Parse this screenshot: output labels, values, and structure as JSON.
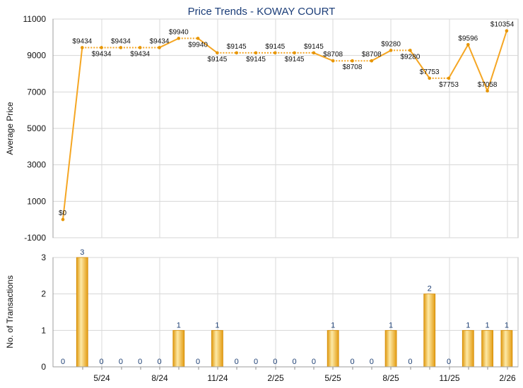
{
  "chart_data": [
    {
      "type": "line",
      "title": "Price Trends - KOWAY COURT",
      "ylabel": "Average Price",
      "ylim": [
        -1000,
        11000
      ],
      "yticks": [
        -1000,
        1000,
        3000,
        5000,
        7000,
        9000,
        11000
      ],
      "x_tick_labels": [
        "5/24",
        "8/24",
        "11/24",
        "2/25",
        "5/25",
        "8/25",
        "11/25",
        "2/26"
      ],
      "series": [
        {
          "values": [
            0,
            9434,
            9434,
            9434,
            9434,
            9434,
            9940,
            9940,
            9145,
            9145,
            9145,
            9145,
            9145,
            9145,
            8708,
            8708,
            8708,
            9280,
            9280,
            7753,
            7753,
            9596,
            7058,
            10354
          ],
          "labels": [
            "$0",
            "$9434",
            "$9434",
            "$9434",
            "$9434",
            "$9434",
            "$9940",
            "$9940",
            "$9145",
            "$9145",
            "$9145",
            "$9145",
            "$9145",
            "$9145",
            "$8708",
            "$8708",
            "$8708",
            "$9280",
            "$9280",
            "$7753",
            "$7753",
            "$9596",
            "$7058",
            "$10354"
          ],
          "has_transaction": [
            false,
            true,
            false,
            false,
            false,
            false,
            true,
            false,
            true,
            false,
            false,
            false,
            false,
            false,
            true,
            false,
            false,
            true,
            false,
            true,
            false,
            true,
            true,
            true
          ]
        }
      ],
      "colors": {
        "line": "#f5a623",
        "marker": "#e69500"
      },
      "grid": true
    },
    {
      "type": "bar",
      "ylabel": "No. of Transactions",
      "ylim": [
        0,
        3
      ],
      "yticks": [
        0,
        1,
        2,
        3
      ],
      "x_tick_labels": [
        "5/24",
        "8/24",
        "11/24",
        "2/25",
        "5/25",
        "8/25",
        "11/25",
        "2/26"
      ],
      "values": [
        0,
        3,
        0,
        0,
        0,
        0,
        1,
        0,
        1,
        0,
        0,
        0,
        0,
        0,
        1,
        0,
        0,
        1,
        0,
        2,
        0,
        1,
        1,
        1
      ],
      "colors": {
        "bar_light": "#fde9a6",
        "bar_mid": "#f6c24a",
        "bar_dark": "#e09a10"
      },
      "grid": true
    }
  ]
}
